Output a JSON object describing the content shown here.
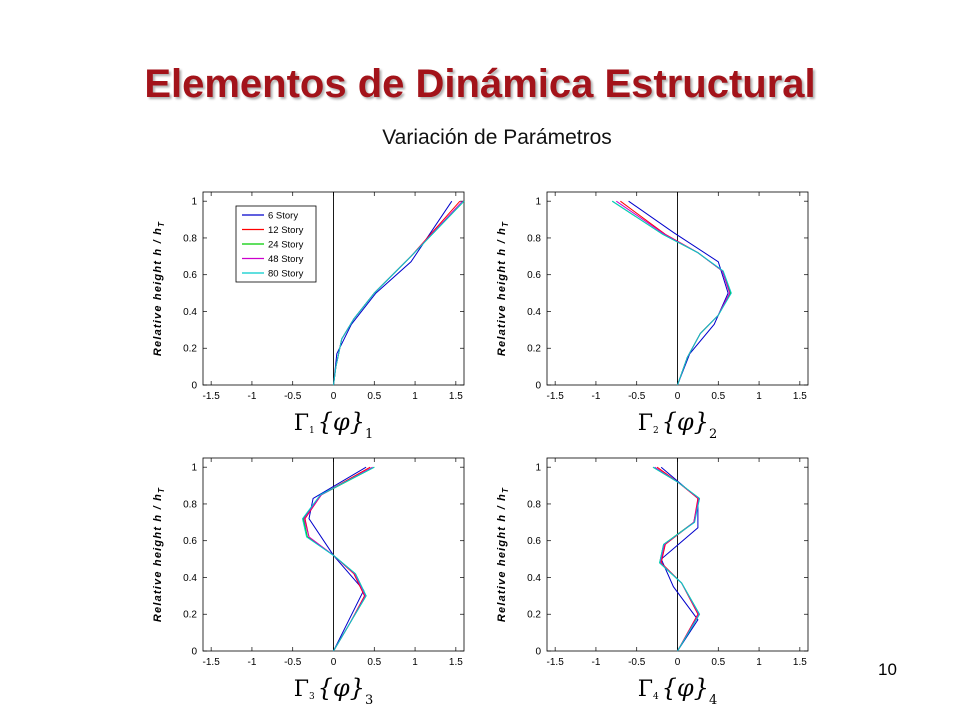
{
  "slide": {
    "title": "Elementos de Dinámica Estructural",
    "subtitle": "Variación de Parámetros",
    "page_number": "10"
  },
  "colors": {
    "title": "#a3131a",
    "series": [
      "#0000cc",
      "#ff0000",
      "#00cc00",
      "#cc00cc",
      "#00cccc"
    ]
  },
  "chart_data": [
    {
      "type": "line",
      "xlabel": "Γ₁ {φ}₁",
      "ylabel": "Relative height  h / h_T",
      "xlim": [
        -1.6,
        1.6
      ],
      "ylim": [
        0,
        1.05
      ],
      "xticks": [
        "-1.5",
        "-1",
        "-0.5",
        "0",
        "0.5",
        "1",
        "1.5"
      ],
      "yticks": [
        "0",
        "0.2",
        "0.4",
        "0.6",
        "0.8",
        "1"
      ],
      "legend": {
        "position": "top-left",
        "entries": [
          "6 Story",
          "12 Story",
          "24 Story",
          "48 Story",
          "80 Story"
        ]
      },
      "series": [
        {
          "name": "6 Story",
          "x": [
            0,
            0.04,
            0.22,
            0.52,
            0.95,
            1.45
          ],
          "y": [
            0,
            0.17,
            0.33,
            0.5,
            0.67,
            1.0
          ]
        },
        {
          "name": "12 Story",
          "x": [
            0,
            0.03,
            0.1,
            0.25,
            0.5,
            0.95,
            1.55
          ],
          "y": [
            0,
            0.1,
            0.25,
            0.36,
            0.5,
            0.7,
            1.0
          ]
        },
        {
          "name": "24 Story",
          "x": [
            0,
            0.03,
            0.1,
            0.25,
            0.5,
            0.95,
            1.6
          ],
          "y": [
            0,
            0.1,
            0.25,
            0.36,
            0.5,
            0.7,
            1.0
          ]
        },
        {
          "name": "48 Story",
          "x": [
            0,
            0.03,
            0.1,
            0.25,
            0.5,
            0.95,
            1.58
          ],
          "y": [
            0,
            0.1,
            0.25,
            0.36,
            0.5,
            0.7,
            1.0
          ]
        },
        {
          "name": "80 Story",
          "x": [
            0,
            0.03,
            0.1,
            0.25,
            0.5,
            0.95,
            1.6
          ],
          "y": [
            0,
            0.1,
            0.25,
            0.36,
            0.5,
            0.7,
            1.0
          ]
        }
      ]
    },
    {
      "type": "line",
      "xlabel": "Γ₂ {φ}₂",
      "ylabel": "Relative height  h / h_T",
      "xlim": [
        -1.6,
        1.6
      ],
      "ylim": [
        0,
        1.05
      ],
      "xticks": [
        "-1.5",
        "-1",
        "-0.5",
        "0",
        "0.5",
        "1",
        "1.5"
      ],
      "yticks": [
        "0",
        "0.2",
        "0.4",
        "0.6",
        "0.8",
        "1"
      ],
      "series": [
        {
          "name": "6 Story",
          "x": [
            0,
            0.15,
            0.45,
            0.62,
            0.5,
            -0.05,
            -0.6
          ],
          "y": [
            0,
            0.17,
            0.33,
            0.5,
            0.67,
            0.83,
            1.0
          ]
        },
        {
          "name": "12 Story",
          "x": [
            0,
            0.12,
            0.28,
            0.5,
            0.64,
            0.55,
            0.25,
            -0.15,
            -0.7
          ],
          "y": [
            0,
            0.15,
            0.28,
            0.38,
            0.5,
            0.62,
            0.72,
            0.82,
            1.0
          ]
        },
        {
          "name": "24 Story",
          "x": [
            0,
            0.12,
            0.28,
            0.5,
            0.65,
            0.55,
            0.25,
            -0.18,
            -0.8
          ],
          "y": [
            0,
            0.15,
            0.28,
            0.38,
            0.5,
            0.62,
            0.72,
            0.82,
            1.0
          ]
        },
        {
          "name": "48 Story",
          "x": [
            0,
            0.12,
            0.28,
            0.5,
            0.64,
            0.55,
            0.25,
            -0.16,
            -0.75
          ],
          "y": [
            0,
            0.15,
            0.28,
            0.38,
            0.5,
            0.62,
            0.72,
            0.82,
            1.0
          ]
        },
        {
          "name": "80 Story",
          "x": [
            0,
            0.12,
            0.28,
            0.5,
            0.66,
            0.56,
            0.25,
            -0.18,
            -0.8
          ],
          "y": [
            0,
            0.15,
            0.28,
            0.38,
            0.5,
            0.62,
            0.72,
            0.82,
            1.0
          ]
        }
      ]
    },
    {
      "type": "line",
      "xlabel": "Γ₃ {φ}₃",
      "ylabel": "Relative height  h / h_T",
      "xlim": [
        -1.6,
        1.6
      ],
      "ylim": [
        0,
        1.05
      ],
      "xticks": [
        "-1.5",
        "-1",
        "-0.5",
        "0",
        "0.5",
        "1",
        "1.5"
      ],
      "yticks": [
        "0",
        "0.2",
        "0.4",
        "0.6",
        "0.8",
        "1"
      ],
      "series": [
        {
          "name": "6 Story",
          "x": [
            0,
            0.37,
            0.0,
            -0.3,
            -0.25,
            0.4
          ],
          "y": [
            0,
            0.33,
            0.52,
            0.72,
            0.83,
            1.0
          ]
        },
        {
          "name": "12 Story",
          "x": [
            0,
            0.2,
            0.38,
            0.25,
            0.0,
            -0.3,
            -0.35,
            -0.15,
            0.45
          ],
          "y": [
            0,
            0.15,
            0.3,
            0.42,
            0.52,
            0.62,
            0.72,
            0.85,
            1.0
          ]
        },
        {
          "name": "24 Story",
          "x": [
            0,
            0.2,
            0.4,
            0.27,
            0.0,
            -0.32,
            -0.37,
            -0.15,
            0.5
          ],
          "y": [
            0,
            0.15,
            0.3,
            0.42,
            0.52,
            0.62,
            0.72,
            0.85,
            1.0
          ]
        },
        {
          "name": "48 Story",
          "x": [
            0,
            0.2,
            0.39,
            0.26,
            0.0,
            -0.3,
            -0.36,
            -0.15,
            0.48
          ],
          "y": [
            0,
            0.15,
            0.3,
            0.42,
            0.52,
            0.62,
            0.72,
            0.85,
            1.0
          ]
        },
        {
          "name": "80 Story",
          "x": [
            0,
            0.2,
            0.4,
            0.27,
            0.0,
            -0.33,
            -0.38,
            -0.16,
            0.5
          ],
          "y": [
            0,
            0.15,
            0.3,
            0.42,
            0.52,
            0.62,
            0.72,
            0.85,
            1.0
          ]
        }
      ]
    },
    {
      "type": "line",
      "xlabel": "Γ₄ {φ}₄",
      "ylabel": "Relative height  h / h_T",
      "xlim": [
        -1.6,
        1.6
      ],
      "ylim": [
        0,
        1.05
      ],
      "xticks": [
        "-1.5",
        "-1",
        "-0.5",
        "0",
        "0.5",
        "1",
        "1.5"
      ],
      "yticks": [
        "0",
        "0.2",
        "0.4",
        "0.6",
        "0.8",
        "1"
      ],
      "series": [
        {
          "name": "6 Story",
          "x": [
            0,
            0.25,
            -0.05,
            -0.2,
            0.25,
            0.25,
            -0.2
          ],
          "y": [
            0,
            0.17,
            0.35,
            0.5,
            0.67,
            0.83,
            1.0
          ]
        },
        {
          "name": "12 Story",
          "x": [
            0,
            0.25,
            0.05,
            -0.2,
            -0.15,
            0.2,
            0.25,
            0.0,
            -0.25
          ],
          "y": [
            0,
            0.2,
            0.37,
            0.48,
            0.58,
            0.7,
            0.83,
            0.92,
            1.0
          ]
        },
        {
          "name": "24 Story",
          "x": [
            0,
            0.27,
            0.05,
            -0.22,
            -0.17,
            0.2,
            0.27,
            0.0,
            -0.3
          ],
          "y": [
            0,
            0.2,
            0.37,
            0.48,
            0.58,
            0.7,
            0.83,
            0.92,
            1.0
          ]
        },
        {
          "name": "48 Story",
          "x": [
            0,
            0.26,
            0.05,
            -0.21,
            -0.16,
            0.2,
            0.26,
            0.0,
            -0.28
          ],
          "y": [
            0,
            0.2,
            0.37,
            0.48,
            0.58,
            0.7,
            0.83,
            0.92,
            1.0
          ]
        },
        {
          "name": "80 Story",
          "x": [
            0,
            0.27,
            0.05,
            -0.22,
            -0.17,
            0.21,
            0.27,
            0.0,
            -0.3
          ],
          "y": [
            0,
            0.2,
            0.37,
            0.48,
            0.58,
            0.7,
            0.83,
            0.92,
            1.0
          ]
        }
      ]
    }
  ]
}
